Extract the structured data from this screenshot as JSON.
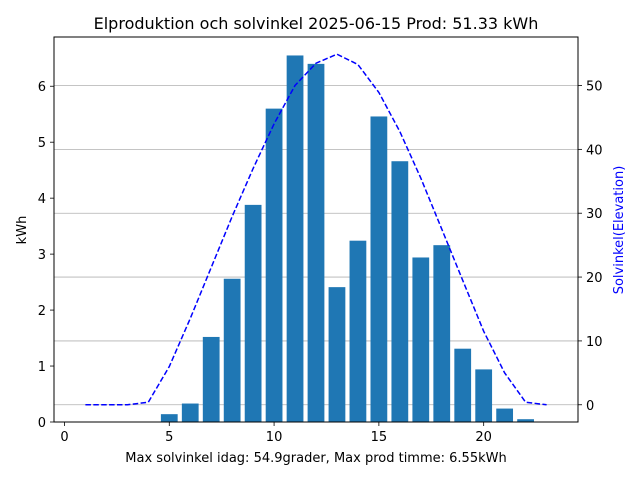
{
  "chart_data": {
    "type": "bar",
    "title": "Elproduktion och solvinkel 2025-06-15 Prod: 51.33 kWh",
    "xlabel": "Max solvinkel idag: 54.9grader, Max prod timme: 6.55kWh",
    "ylabel": "kWh",
    "ylabel_right": "Solvinkel(Elevation)",
    "xlim": [
      -0.5,
      24.5
    ],
    "ylim": [
      0,
      6.88
    ],
    "ylim_right": [
      -2.7,
      57.6
    ],
    "x_ticks": [
      0,
      5,
      10,
      15,
      20
    ],
    "y_ticks": [
      0,
      1,
      2,
      3,
      4,
      5,
      6
    ],
    "y_ticks_right": [
      0,
      10,
      20,
      30,
      40,
      50
    ],
    "grid_right_axis": true,
    "colors": {
      "bars": "#1f77b4",
      "line": "#0000ff",
      "grid": "#b0b0b0"
    },
    "series": [
      {
        "type": "bar",
        "axis": "left",
        "x": [
          5,
          6,
          7,
          8,
          9,
          10,
          11,
          12,
          13,
          14,
          15,
          16,
          17,
          18,
          19,
          20,
          21,
          22
        ],
        "values": [
          0.14,
          0.33,
          1.52,
          2.56,
          3.88,
          5.6,
          6.55,
          6.4,
          2.41,
          3.24,
          5.46,
          4.66,
          2.94,
          3.16,
          1.31,
          0.94,
          0.24,
          0.05
        ]
      },
      {
        "type": "line",
        "axis": "right",
        "style": "dashed",
        "x": [
          1,
          2,
          3,
          4,
          5,
          6,
          7,
          8,
          9,
          10,
          11,
          12,
          13,
          14,
          15,
          16,
          17,
          18,
          19,
          20,
          21,
          22,
          23
        ],
        "values": [
          0,
          0,
          0,
          0.4,
          6,
          13.5,
          21.5,
          29.5,
          37,
          44,
          50,
          53.5,
          54.9,
          53.3,
          48.9,
          42.8,
          35.5,
          27.5,
          19.5,
          11.5,
          5,
          0.4,
          0
        ]
      }
    ]
  }
}
